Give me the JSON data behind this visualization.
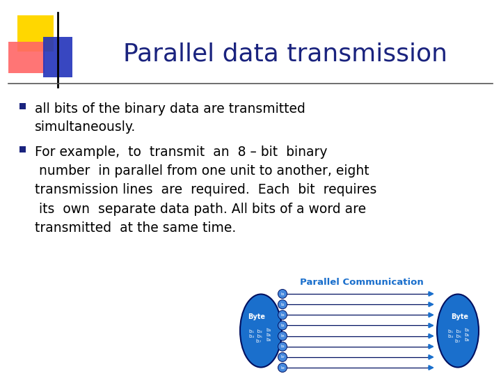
{
  "title": "Parallel data transmission",
  "title_color": "#1a237e",
  "title_fontsize": 26,
  "bg_color": "#ffffff",
  "bullet1": "all bits of the binary data are transmitted\nsimultaneously.",
  "bullet2": "For example,  to  transmit  an  8 – bit  binary\n number  in parallel from one unit to another, eight\ntransmission lines  are  required.  Each  bit  requires\n its  own  separate data path. All bits of a word are\ntransmitted  at the same time.",
  "bullet_color": "#000000",
  "bullet_fontsize": 13.5,
  "bullet_marker_color": "#1a237e",
  "header_square_yellow": "#FFD700",
  "header_square_red": "#FF6666",
  "header_rect_blue": "#2233bb",
  "diagram_title": "Parallel Communication",
  "diagram_title_color": "#1a6fcc",
  "ellipse_color": "#1a6fcc",
  "ellipse_edge_color": "#001060",
  "node_color": "#4488dd",
  "arrow_color": "#1a6fcc",
  "line_data_color": "#001060",
  "n_lines": 8,
  "bits": [
    "b₁",
    "b₂",
    "b₃",
    "b₄",
    "b₅",
    "b₆",
    "b₇",
    "b₈"
  ]
}
